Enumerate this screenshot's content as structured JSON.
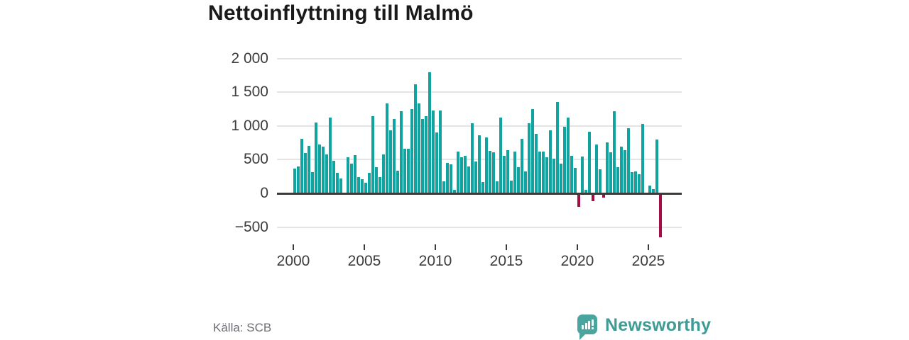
{
  "header": {
    "title": "Nettoinflyttning till Malmö"
  },
  "footer": {
    "source": "Källa: SCB",
    "brand": {
      "name": "Newsworthy",
      "color": "#3f9c95",
      "icon": "newsworthy-speech-bubble-chart-icon"
    }
  },
  "chart_data": {
    "type": "bar",
    "title": "Nettoinflyttning till Malmö",
    "xlabel": "",
    "ylabel": "",
    "frequency": "quarterly",
    "period_start": "2000 Q1",
    "period_end": "2025 Q4",
    "series": [
      {
        "name": "Nettoinflyttning per kvartal",
        "values": [
          370,
          395,
          805,
          600,
          705,
          320,
          1055,
          720,
          690,
          575,
          1120,
          480,
          300,
          220,
          10,
          540,
          445,
          565,
          240,
          205,
          155,
          300,
          1145,
          385,
          240,
          575,
          1330,
          930,
          1105,
          340,
          1220,
          665,
          660,
          1255,
          1615,
          1330,
          1105,
          1145,
          1800,
          1230,
          900,
          1225,
          180,
          455,
          430,
          50,
          620,
          535,
          555,
          400,
          1040,
          475,
          860,
          170,
          825,
          635,
          610,
          175,
          1120,
          560,
          645,
          185,
          625,
          385,
          810,
          330,
          1040,
          1250,
          885,
          620,
          620,
          535,
          930,
          515,
          1355,
          445,
          985,
          1120,
          560,
          380,
          -200,
          550,
          55,
          910,
          -115,
          720,
          360,
          -60,
          755,
          610,
          1220,
          385,
          695,
          645,
          970,
          315,
          330,
          280,
          1025,
          10,
          115,
          60,
          800,
          -655
        ]
      }
    ],
    "x_ticks": [
      "2000",
      "2005",
      "2010",
      "2015",
      "2020",
      "2025"
    ],
    "y_ticks": [
      {
        "label": "2 000",
        "value": 2000
      },
      {
        "label": "1 500",
        "value": 1500
      },
      {
        "label": "1 000",
        "value": 1000
      },
      {
        "label": "500",
        "value": 500
      },
      {
        "label": "0",
        "value": 0
      },
      {
        "label": "−500",
        "value": -500
      }
    ],
    "ylim": [
      -700,
      2050
    ],
    "grid": true,
    "legend": "none",
    "colors": {
      "positive": "#10a39f",
      "negative": "#a50d45",
      "grid": "#e4e4e4",
      "axis": "#3b3b3b",
      "tick_text": "#3d3d3d"
    }
  }
}
